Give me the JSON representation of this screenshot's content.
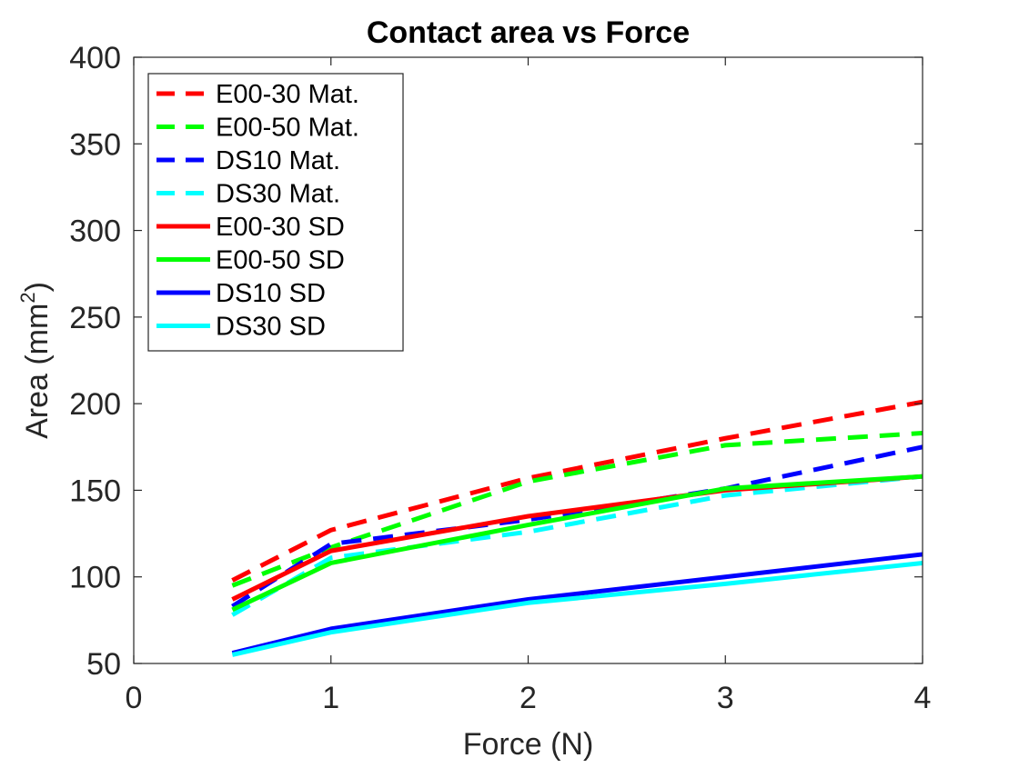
{
  "chart_data": {
    "type": "line",
    "title": "Contact area vs Force",
    "xlabel": "Force (N)",
    "ylabel_main": "Area (mm",
    "ylabel_sup": "2",
    "ylabel_close": ")",
    "xlim": [
      0,
      4
    ],
    "ylim": [
      50,
      400
    ],
    "xticks": [
      "0",
      "1",
      "2",
      "3",
      "4"
    ],
    "yticks": [
      "50",
      "100",
      "150",
      "200",
      "250",
      "300",
      "350",
      "400"
    ],
    "grid": false,
    "legend_position": "top-left",
    "x": [
      0.5,
      1,
      2,
      3,
      4
    ],
    "series": [
      {
        "name": "E00-30 Mat.",
        "color": "#ff0000",
        "dash": "dashed",
        "values": [
          98,
          127,
          157,
          180,
          201
        ]
      },
      {
        "name": "E00-50 Mat.",
        "color": "#00ff00",
        "dash": "dashed",
        "values": [
          95,
          117,
          155,
          176,
          183
        ]
      },
      {
        "name": "DS10 Mat.",
        "color": "#0000ff",
        "dash": "dashed",
        "values": [
          83,
          119,
          133,
          151,
          175
        ]
      },
      {
        "name": "DS30 Mat.",
        "color": "#00ffff",
        "dash": "dashed",
        "values": [
          78,
          111,
          126,
          147,
          158
        ]
      },
      {
        "name": "E00-30 SD",
        "color": "#ff0000",
        "dash": "solid",
        "values": [
          87,
          115,
          135,
          150,
          158
        ]
      },
      {
        "name": "E00-50 SD",
        "color": "#00ff00",
        "dash": "solid",
        "values": [
          81,
          108,
          130,
          151,
          158
        ]
      },
      {
        "name": "DS10 SD",
        "color": "#0000ff",
        "dash": "solid",
        "values": [
          56,
          70,
          87,
          100,
          113
        ]
      },
      {
        "name": "DS30 SD",
        "color": "#00ffff",
        "dash": "solid",
        "values": [
          55,
          68,
          85,
          96,
          108
        ]
      }
    ]
  }
}
